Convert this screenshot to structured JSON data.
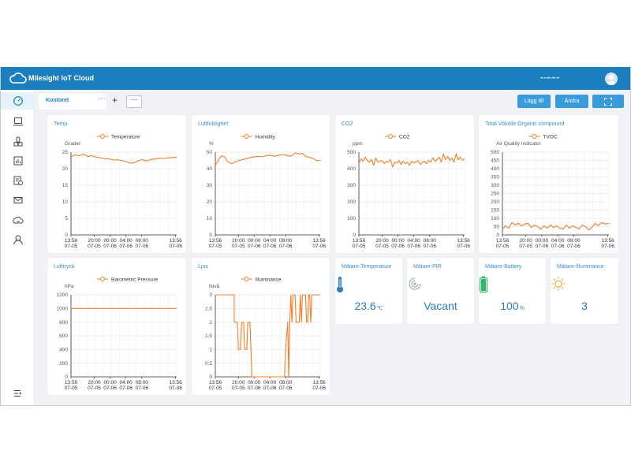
{
  "app": {
    "title": "Milesight IoT Cloud",
    "account": "••·•·•••·•••·••"
  },
  "colors": {
    "brand": "#1b7fbf",
    "accent": "#3a8fd1",
    "series": "#f07f2a"
  },
  "sidebar": {
    "items": [
      {
        "icon": "dashboard-icon",
        "active": true
      },
      {
        "icon": "device-icon"
      },
      {
        "icon": "map-icon"
      },
      {
        "icon": "report-icon"
      },
      {
        "icon": "schedule-icon"
      },
      {
        "icon": "message-icon"
      },
      {
        "icon": "cloud-icon"
      },
      {
        "icon": "user-icon"
      },
      {
        "icon": "collapse-menu-icon"
      }
    ]
  },
  "tabs": [
    {
      "label": "Kontoret",
      "active": true
    }
  ],
  "toolbar": {
    "add_label": "Lägg till",
    "edit_label": "Ändra",
    "fullscreen_icon": "fullscreen-icon",
    "add_tab": "+",
    "more": "⋯"
  },
  "x_ticks": [
    {
      "t": "13:56",
      "d": "07-05"
    },
    {
      "t": "20:00",
      "d": "07-05"
    },
    {
      "t": "00:00",
      "d": "07-06"
    },
    {
      "t": "04:00",
      "d": "07-06"
    },
    {
      "t": "08:00",
      "d": "07-06"
    },
    {
      "t": "13:56",
      "d": "07-06"
    }
  ],
  "chart_data": [
    {
      "id": "temp",
      "type": "line",
      "title": "Temp",
      "series": [
        {
          "name": "Temperature"
        }
      ],
      "ylabel": "Grader",
      "ylim": [
        0,
        25
      ],
      "yticks": [
        0,
        5,
        10,
        15,
        20,
        25
      ],
      "x": [
        0,
        0.04,
        0.08,
        0.12,
        0.16,
        0.2,
        0.24,
        0.28,
        0.32,
        0.36,
        0.4,
        0.44,
        0.48,
        0.52,
        0.56,
        0.6,
        0.64,
        0.68,
        0.72,
        0.76,
        0.8,
        0.84,
        0.88,
        0.92,
        0.96,
        1
      ],
      "values": [
        23.6,
        24.2,
        23.9,
        24.4,
        23.7,
        23.9,
        23.5,
        23.3,
        23.0,
        23.0,
        22.6,
        22.7,
        22.5,
        22.2,
        21.7,
        21.8,
        22.5,
        22.7,
        22.3,
        22.8,
        23.0,
        23.2,
        23.1,
        23.3,
        23.3,
        23.5
      ]
    },
    {
      "id": "humidity",
      "type": "line",
      "title": "Luftfuktighet",
      "series": [
        {
          "name": "Humidity"
        }
      ],
      "ylabel": "%",
      "ylim": [
        0,
        50
      ],
      "yticks": [
        0,
        10,
        20,
        30,
        40,
        50
      ],
      "x": [
        0,
        0.03,
        0.06,
        0.09,
        0.12,
        0.16,
        0.2,
        0.24,
        0.28,
        0.32,
        0.36,
        0.4,
        0.44,
        0.48,
        0.52,
        0.56,
        0.6,
        0.64,
        0.68,
        0.72,
        0.76,
        0.8,
        0.83,
        0.86,
        0.9,
        0.94,
        0.97,
        1
      ],
      "values": [
        42.0,
        45.5,
        47.8,
        47.0,
        44.0,
        43.0,
        44.5,
        45.2,
        45.8,
        46.5,
        47.0,
        47.5,
        47.2,
        47.8,
        48.2,
        47.5,
        48.0,
        48.6,
        48.0,
        47.5,
        49.5,
        48.8,
        49.2,
        47.5,
        46.8,
        46.0,
        44.8,
        45.0
      ]
    },
    {
      "id": "co2",
      "type": "line",
      "title": "CO2",
      "series": [
        {
          "name": "CO2"
        }
      ],
      "ylabel": "ppm",
      "ylim": [
        0,
        500
      ],
      "yticks": [
        0,
        100,
        200,
        300,
        400,
        500
      ],
      "x": [
        0,
        0.02,
        0.04,
        0.06,
        0.08,
        0.1,
        0.12,
        0.14,
        0.16,
        0.18,
        0.2,
        0.22,
        0.24,
        0.26,
        0.28,
        0.3,
        0.32,
        0.34,
        0.36,
        0.38,
        0.4,
        0.42,
        0.44,
        0.46,
        0.48,
        0.5,
        0.52,
        0.54,
        0.56,
        0.58,
        0.6,
        0.62,
        0.64,
        0.66,
        0.68,
        0.7,
        0.72,
        0.74,
        0.76,
        0.78,
        0.8,
        0.82,
        0.84,
        0.86,
        0.88,
        0.9,
        0.92,
        0.94,
        0.96,
        0.98,
        1
      ],
      "values": [
        430,
        460,
        445,
        470,
        450,
        440,
        455,
        420,
        465,
        440,
        445,
        450,
        430,
        445,
        440,
        455,
        410,
        440,
        435,
        450,
        425,
        445,
        430,
        440,
        420,
        445,
        435,
        440,
        450,
        425,
        440,
        445,
        430,
        450,
        440,
        465,
        445,
        455,
        470,
        440,
        490,
        455,
        475,
        450,
        465,
        440,
        490,
        455,
        470,
        450,
        460
      ]
    },
    {
      "id": "tvoc",
      "type": "line",
      "title": "Total Volotile Organic compound",
      "series": [
        {
          "name": "TVOC"
        }
      ],
      "ylabel": "Air Quality Indicator",
      "ylim": [
        0,
        500
      ],
      "yticks": [
        0,
        50,
        100,
        150,
        200,
        250,
        300,
        350,
        400,
        450,
        500
      ],
      "x": [
        0,
        0.03,
        0.06,
        0.09,
        0.12,
        0.15,
        0.18,
        0.21,
        0.24,
        0.27,
        0.3,
        0.33,
        0.36,
        0.39,
        0.42,
        0.45,
        0.48,
        0.51,
        0.54,
        0.57,
        0.6,
        0.63,
        0.66,
        0.69,
        0.72,
        0.75,
        0.78,
        0.81,
        0.84,
        0.87,
        0.9,
        0.93,
        0.96,
        1
      ],
      "values": [
        35,
        55,
        40,
        75,
        60,
        70,
        55,
        65,
        70,
        45,
        60,
        50,
        35,
        55,
        40,
        60,
        45,
        55,
        40,
        35,
        60,
        40,
        55,
        45,
        35,
        60,
        50,
        30,
        45,
        70,
        55,
        75,
        65,
        70
      ]
    },
    {
      "id": "pressure",
      "type": "line",
      "title": "Lufttryck",
      "series": [
        {
          "name": "Barometric Pressure"
        }
      ],
      "ylabel": "hPa",
      "ylim": [
        0,
        1200
      ],
      "yticks": [
        0,
        200,
        400,
        600,
        800,
        1000,
        1200
      ],
      "x": [
        0,
        1
      ],
      "values": [
        1000,
        1000
      ]
    },
    {
      "id": "light",
      "type": "line",
      "title": "Ljus",
      "series": [
        {
          "name": "Illuminance"
        }
      ],
      "ylabel": "Nivå",
      "ylim": [
        0,
        3
      ],
      "yticks": [
        0,
        0.5,
        1,
        1.5,
        2,
        2.5,
        3
      ],
      "x": [
        0,
        0.18,
        0.18,
        0.21,
        0.22,
        0.24,
        0.25,
        0.27,
        0.28,
        0.3,
        0.31,
        0.33,
        0.34,
        0.35,
        0.36,
        0.66,
        0.67,
        0.69,
        0.7,
        0.71,
        0.72,
        0.73,
        0.74,
        0.76,
        0.77,
        0.8,
        0.81,
        0.82,
        0.83,
        0.86,
        0.87,
        0.88,
        0.89,
        0.9,
        0.91,
        0.92,
        1
      ],
      "values": [
        3,
        3,
        2,
        2,
        1,
        1,
        2,
        2,
        1,
        1,
        2,
        2,
        1,
        0,
        0,
        0,
        1,
        2,
        0,
        2,
        3,
        2,
        3,
        3,
        2,
        2,
        3,
        2,
        3,
        3,
        2,
        2,
        3,
        3,
        2,
        3,
        3
      ]
    }
  ],
  "stats": [
    {
      "title": "Mätare-Temperature",
      "icon": "thermometer-icon",
      "value": "23.6",
      "unit": "℃"
    },
    {
      "title": "Mätare-PIR",
      "icon": "motion-sensor-icon",
      "value": "Vacant",
      "unit": ""
    },
    {
      "title": "Mätare-Battery",
      "icon": "battery-icon",
      "value": "100",
      "unit": "%"
    },
    {
      "title": "Mätare-Illuminance",
      "icon": "sun-icon",
      "value": "3",
      "unit": ""
    }
  ]
}
